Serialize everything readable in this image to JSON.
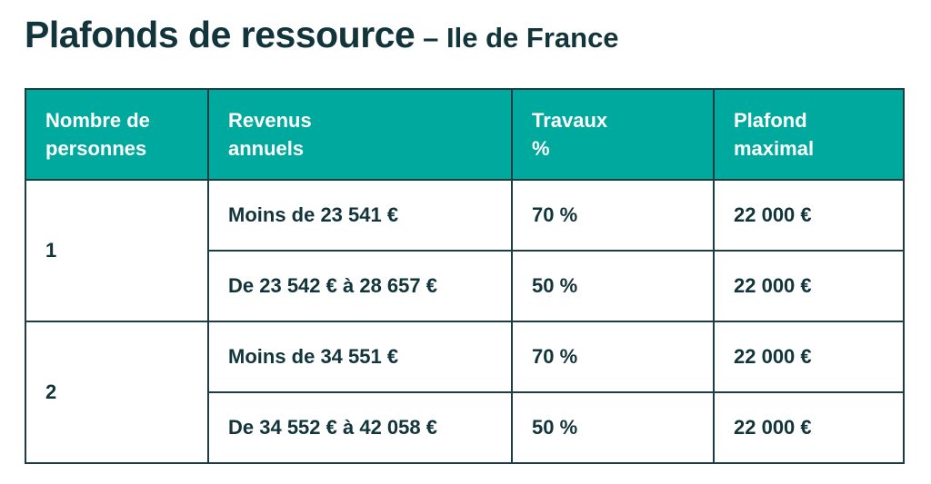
{
  "title": {
    "main": "Plafonds de ressource",
    "sub": "– Ile de France"
  },
  "table": {
    "headers": [
      [
        "Nombre de",
        "personnes"
      ],
      [
        "Revenus",
        "annuels"
      ],
      [
        "Travaux",
        "%"
      ],
      [
        "Plafond",
        "maximal"
      ]
    ],
    "groups": [
      {
        "persons": "1",
        "rows": [
          {
            "revenus": "Moins de 23 541 €",
            "travaux": "70 %",
            "plafond": "22 000 €"
          },
          {
            "revenus": "De 23 542 € à 28 657 €",
            "travaux": "50 %",
            "plafond": "22 000 €"
          }
        ]
      },
      {
        "persons": "2",
        "rows": [
          {
            "revenus": "Moins de 34 551 €",
            "travaux": "70 %",
            "plafond": "22 000 €"
          },
          {
            "revenus": "De 34 552 € à 42 058 €",
            "travaux": "50 %",
            "plafond": "22 000 €"
          }
        ]
      }
    ]
  },
  "colors": {
    "header_bg": "#00a99d",
    "header_text": "#ffffff",
    "text": "#12343b",
    "border": "#1c3d46"
  }
}
